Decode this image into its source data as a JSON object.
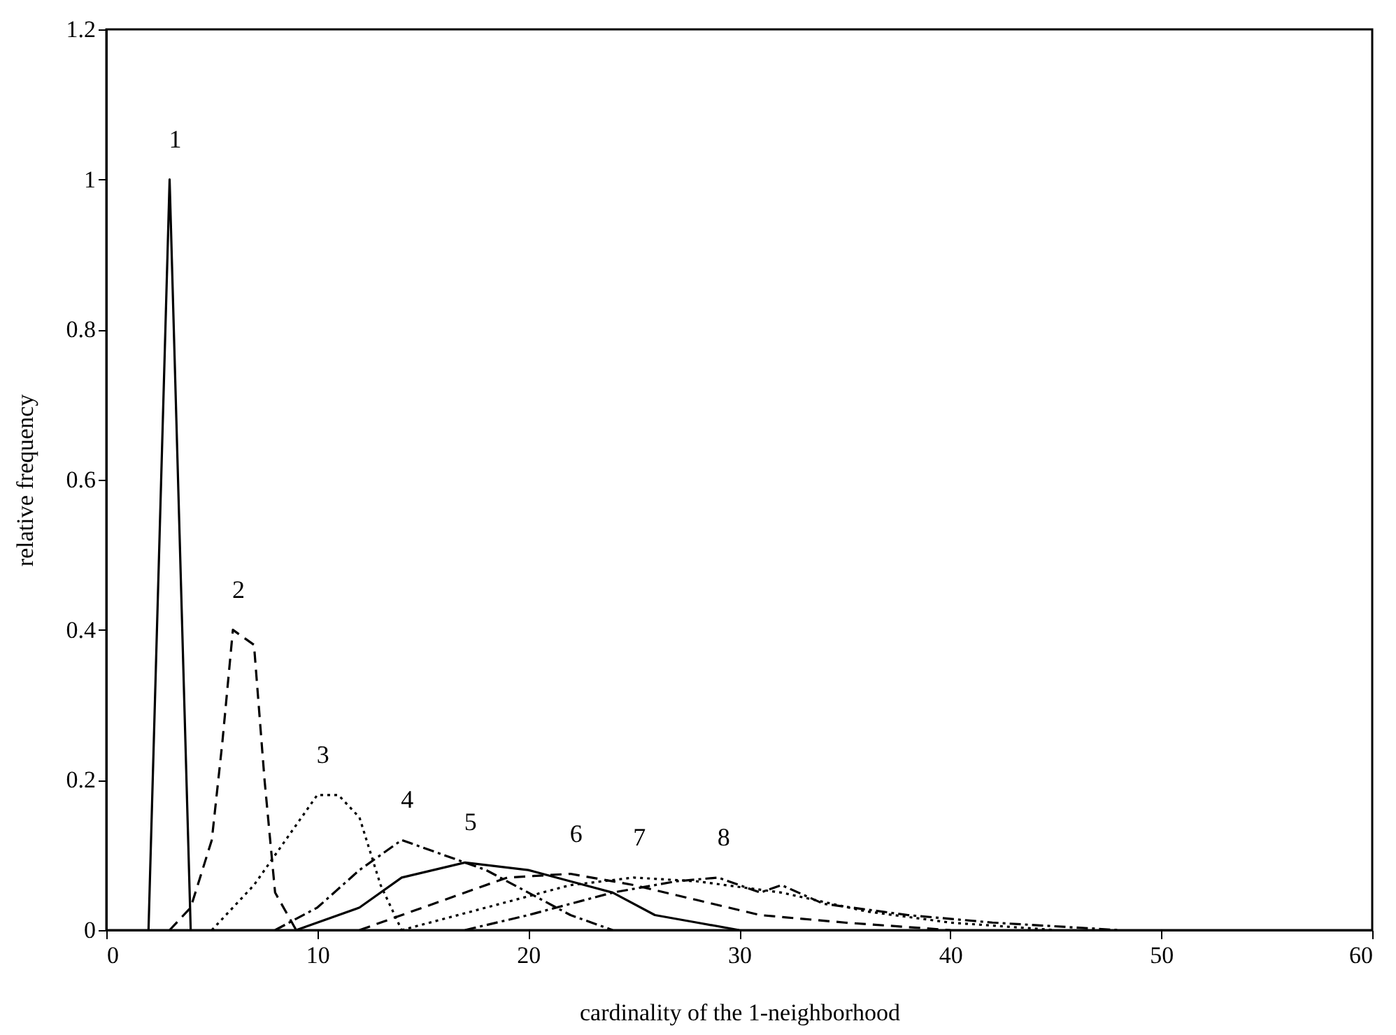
{
  "chart_data": {
    "type": "line",
    "xlabel": "cardinality of the 1-neighborhood",
    "ylabel": "relative frequency",
    "xlim": [
      0,
      60
    ],
    "xticks": [
      0,
      10,
      20,
      30,
      40,
      50,
      60
    ],
    "ylim": [
      0,
      1.2
    ],
    "yticks": [
      0,
      0.2,
      0.4,
      0.6,
      0.8,
      1,
      1.2
    ],
    "grid": false,
    "marker": "none",
    "series": [
      {
        "color": "#000000",
        "line_style": "solid",
        "x": [
          2,
          3,
          4
        ],
        "values": [
          0,
          1,
          0
        ]
      },
      {
        "color": "#000000",
        "line_style": "dashed",
        "x": [
          3,
          4,
          5,
          5.5,
          6,
          7,
          7.5,
          8,
          9
        ],
        "values": [
          0,
          0.03,
          0.12,
          0.25,
          0.4,
          0.38,
          0.2,
          0.05,
          0
        ]
      },
      {
        "color": "#000000",
        "line_style": "dotted",
        "x": [
          5,
          7,
          9,
          10,
          11,
          12,
          13,
          14
        ],
        "values": [
          0,
          0.06,
          0.14,
          0.18,
          0.18,
          0.15,
          0.06,
          0
        ]
      },
      {
        "color": "#000000",
        "line_style": "dashdot",
        "x": [
          8,
          10,
          12,
          14,
          16,
          18,
          20,
          22,
          24
        ],
        "values": [
          0,
          0.03,
          0.08,
          0.12,
          0.1,
          0.08,
          0.05,
          0.02,
          0
        ]
      },
      {
        "color": "#000000",
        "line_style": "solid",
        "x": [
          9,
          12,
          14,
          17,
          20,
          22,
          24,
          26,
          28,
          30
        ],
        "values": [
          0,
          0.03,
          0.07,
          0.09,
          0.08,
          0.065,
          0.05,
          0.02,
          0.01,
          0
        ]
      },
      {
        "color": "#000000",
        "line_style": "dashed",
        "x": [
          12,
          16,
          19,
          22,
          25,
          28,
          31,
          35,
          40
        ],
        "values": [
          0,
          0.04,
          0.07,
          0.075,
          0.06,
          0.04,
          0.02,
          0.01,
          0
        ]
      },
      {
        "color": "#000000",
        "line_style": "dotted",
        "x": [
          14,
          18,
          22,
          25,
          28,
          32,
          36,
          40,
          45
        ],
        "values": [
          0,
          0.03,
          0.06,
          0.07,
          0.065,
          0.05,
          0.025,
          0.01,
          0
        ]
      },
      {
        "color": "#000000",
        "line_style": "dashdot",
        "x": [
          17,
          20,
          24,
          27,
          29,
          31,
          32,
          34,
          38,
          42,
          48
        ],
        "values": [
          0,
          0.02,
          0.05,
          0.065,
          0.07,
          0.05,
          0.06,
          0.035,
          0.02,
          0.01,
          0
        ]
      }
    ],
    "annotations": [
      "1",
      "2",
      "3",
      "4",
      "5",
      "6",
      "7",
      "8"
    ]
  }
}
